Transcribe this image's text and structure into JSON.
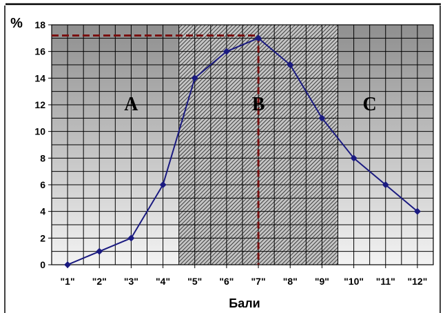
{
  "chart_data": {
    "type": "line",
    "title": "",
    "xlabel": "Бали",
    "ylabel": "%",
    "ylim": [
      0,
      18
    ],
    "y_ticks": [
      0,
      2,
      4,
      6,
      8,
      10,
      12,
      14,
      16,
      18
    ],
    "categories": [
      "\"1\"",
      "\"2\"",
      "\"3\"",
      "\"4\"",
      "\"5\"",
      "\"6\"",
      "\"7\"",
      "\"8\"",
      "\"9\"",
      "\"10\"",
      "\"11\"",
      "\"12\""
    ],
    "series": [
      {
        "values": [
          0,
          1,
          2,
          6,
          14,
          16,
          17,
          15,
          11,
          8,
          6,
          4
        ]
      }
    ],
    "regions": [
      {
        "label": "A",
        "from_category": 0,
        "to_category": 4
      },
      {
        "label": "B",
        "from_category": 4,
        "to_category": 8
      },
      {
        "label": "C",
        "from_category": 8,
        "to_category": 11
      }
    ],
    "reference_value": 17.2,
    "reference_category": 6,
    "grid": true,
    "colors": {
      "series": "#1a1a80",
      "reference": "#7a1010",
      "plot_bg_top": "#8f8f8f",
      "plot_bg_bottom": "#f3f3f3",
      "grid": "#000000"
    }
  }
}
